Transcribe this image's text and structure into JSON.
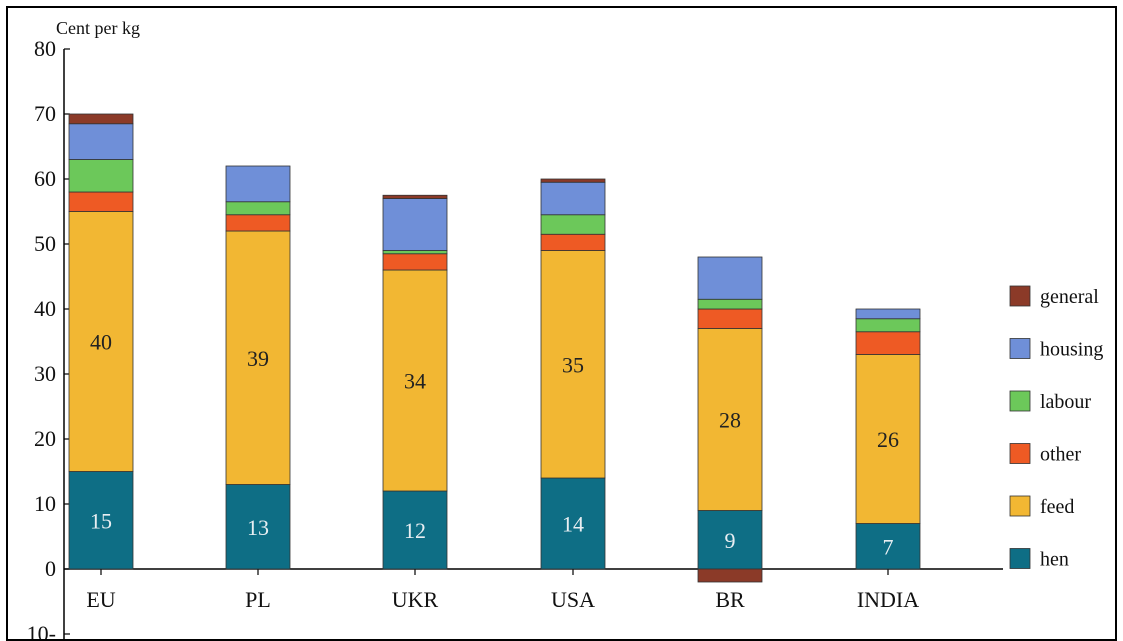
{
  "chart_data": {
    "type": "bar",
    "stacked": true,
    "title": "",
    "ylabel": "Cent per kg",
    "xlabel": "",
    "ylim": [
      -10,
      80
    ],
    "yticks": [
      80,
      70,
      60,
      50,
      40,
      30,
      20,
      10,
      0,
      -10
    ],
    "ytick_labels": [
      "80",
      "70",
      "60",
      "50",
      "40",
      "30",
      "20",
      "10",
      "0",
      "10-"
    ],
    "grid": false,
    "legend_position": "right",
    "categories": [
      "EU",
      "PL",
      "UKR",
      "USA",
      "BR",
      "INDIA"
    ],
    "series": [
      {
        "name": "hen",
        "color": "#0e6e85",
        "label_color": "#e8eef2",
        "values": [
          15,
          13,
          12,
          14,
          9,
          7
        ]
      },
      {
        "name": "feed",
        "color": "#f2b733",
        "label_color": "#222222",
        "values": [
          40,
          39,
          34,
          35,
          28,
          26
        ]
      },
      {
        "name": "other",
        "color": "#ee5a24",
        "values": [
          3,
          2.5,
          2.5,
          2.5,
          3,
          3.5
        ]
      },
      {
        "name": "labour",
        "color": "#6cc85a",
        "values": [
          5,
          2,
          0.5,
          3,
          1.5,
          2
        ]
      },
      {
        "name": "housing",
        "color": "#6f8fd8",
        "values": [
          5.5,
          5.5,
          8,
          5,
          6.5,
          1.5
        ]
      },
      {
        "name": "general",
        "color": "#8b3a28",
        "values": [
          1.5,
          0,
          0.5,
          0.5,
          -2,
          0
        ]
      }
    ],
    "data_labels": [
      {
        "series": "hen",
        "values": [
          "15",
          "13",
          "12",
          "14",
          "9",
          "7"
        ]
      },
      {
        "series": "feed",
        "values": [
          "40",
          "39",
          "34",
          "35",
          "28",
          "26"
        ]
      }
    ],
    "legend_order": [
      "general",
      "housing",
      "labour",
      "other",
      "feed",
      "hen"
    ]
  }
}
